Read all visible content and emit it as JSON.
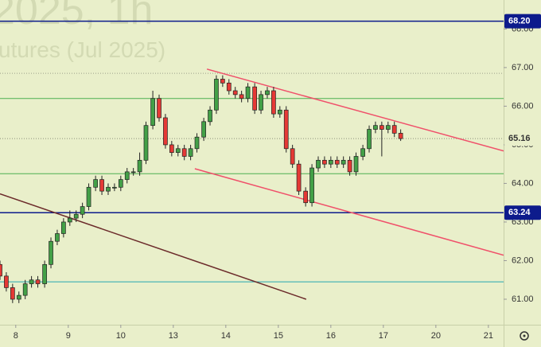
{
  "chart_data": {
    "type": "candlestick",
    "watermark": [
      "2025, 1h",
      "utures (Jul 2025)"
    ],
    "xlim": [
      -0.3,
      9.29
    ],
    "ylim": [
      60.34,
      68.75
    ],
    "xticks": [
      {
        "value": 0,
        "label": "8"
      },
      {
        "value": 1,
        "label": "9"
      },
      {
        "value": 2,
        "label": "10"
      },
      {
        "value": 3,
        "label": "13"
      },
      {
        "value": 4,
        "label": "14"
      },
      {
        "value": 5,
        "label": "15"
      },
      {
        "value": 6,
        "label": "16"
      },
      {
        "value": 7,
        "label": "17"
      },
      {
        "value": 8,
        "label": "20"
      },
      {
        "value": 9,
        "label": "21"
      }
    ],
    "yticks": [
      {
        "value": 61,
        "label": "61.00"
      },
      {
        "value": 62,
        "label": "62.00"
      },
      {
        "value": 63,
        "label": "63.00"
      },
      {
        "value": 64,
        "label": "64.00"
      },
      {
        "value": 65,
        "label": "65.00"
      },
      {
        "value": 66,
        "label": "66.00"
      },
      {
        "value": 67,
        "label": "67.00"
      },
      {
        "value": 68,
        "label": "68.00"
      }
    ],
    "up_color": "#43a047",
    "down_color": "#e53935",
    "x": [
      -0.3,
      -0.18,
      -0.06,
      0.06,
      0.18,
      0.3,
      0.42,
      0.55,
      0.67,
      0.79,
      0.91,
      1.03,
      1.15,
      1.27,
      1.39,
      1.52,
      1.64,
      1.76,
      1.88,
      2.0,
      2.12,
      2.24,
      2.36,
      2.48,
      2.61,
      2.73,
      2.85,
      2.97,
      3.09,
      3.21,
      3.33,
      3.45,
      3.58,
      3.7,
      3.82,
      3.94,
      4.06,
      4.18,
      4.3,
      4.42,
      4.55,
      4.67,
      4.79,
      4.91,
      5.03,
      5.15,
      5.27,
      5.39,
      5.52,
      5.64,
      5.76,
      5.88,
      6.0,
      6.12,
      6.24,
      6.36,
      6.48,
      6.61,
      6.73,
      6.85,
      6.97,
      7.09,
      7.21,
      7.33
    ],
    "open": [
      61.9,
      61.6,
      61.3,
      61.0,
      61.1,
      61.4,
      61.5,
      61.4,
      61.9,
      62.5,
      62.7,
      63.0,
      63.1,
      63.2,
      63.4,
      63.9,
      64.1,
      63.8,
      63.9,
      63.9,
      64.1,
      64.3,
      64.3,
      64.6,
      65.5,
      66.2,
      65.7,
      65.0,
      64.8,
      64.9,
      64.7,
      64.9,
      65.2,
      65.6,
      65.9,
      66.7,
      66.6,
      66.4,
      66.3,
      66.2,
      66.5,
      65.9,
      66.3,
      66.4,
      65.8,
      65.9,
      64.9,
      64.5,
      63.8,
      63.5,
      64.4,
      64.6,
      64.5,
      64.6,
      64.5,
      64.6,
      64.3,
      64.7,
      64.9,
      65.4,
      65.5,
      65.4,
      65.5,
      65.3
    ],
    "high": [
      62.0,
      61.7,
      61.4,
      61.2,
      61.5,
      61.6,
      61.6,
      62.0,
      62.6,
      62.8,
      63.1,
      63.3,
      63.3,
      63.5,
      64.0,
      64.2,
      64.2,
      64.0,
      64.0,
      64.2,
      64.4,
      64.4,
      64.8,
      65.6,
      66.4,
      66.3,
      65.8,
      65.1,
      65.0,
      65.0,
      65.0,
      65.3,
      65.7,
      66.0,
      66.8,
      66.8,
      66.7,
      66.5,
      66.4,
      66.6,
      66.6,
      66.4,
      66.5,
      66.5,
      66.0,
      66.0,
      65.0,
      64.6,
      63.9,
      64.5,
      64.7,
      64.7,
      64.7,
      64.7,
      64.7,
      64.7,
      64.8,
      65.0,
      65.5,
      65.6,
      65.6,
      65.6,
      65.6,
      65.4
    ],
    "low": [
      61.5,
      61.2,
      60.9,
      60.9,
      61.0,
      61.3,
      61.3,
      61.3,
      61.8,
      62.4,
      62.6,
      62.9,
      63.0,
      63.1,
      63.3,
      63.8,
      63.7,
      63.7,
      63.8,
      63.8,
      64.0,
      64.2,
      64.2,
      64.5,
      65.4,
      65.6,
      64.9,
      64.7,
      64.7,
      64.6,
      64.6,
      64.8,
      65.1,
      65.5,
      65.8,
      66.5,
      66.3,
      66.2,
      66.1,
      66.1,
      65.8,
      65.8,
      66.2,
      65.7,
      65.7,
      64.8,
      64.4,
      63.7,
      63.4,
      63.4,
      64.3,
      64.4,
      64.4,
      64.4,
      64.4,
      64.2,
      64.2,
      64.6,
      64.8,
      65.3,
      64.7,
      65.3,
      65.2,
      65.1
    ],
    "close": [
      61.6,
      61.3,
      61.0,
      61.1,
      61.4,
      61.5,
      61.4,
      61.9,
      62.5,
      62.7,
      63.0,
      63.1,
      63.2,
      63.4,
      63.9,
      64.1,
      63.8,
      63.9,
      63.9,
      64.1,
      64.3,
      64.3,
      64.6,
      65.5,
      66.2,
      65.7,
      65.0,
      64.8,
      64.9,
      64.7,
      64.9,
      65.2,
      65.6,
      65.9,
      66.7,
      66.6,
      66.4,
      66.3,
      66.2,
      66.5,
      65.9,
      66.3,
      66.4,
      65.8,
      65.9,
      64.9,
      64.5,
      63.8,
      63.5,
      64.4,
      64.6,
      64.5,
      64.6,
      64.5,
      64.6,
      64.3,
      64.7,
      64.9,
      65.4,
      65.5,
      65.4,
      65.5,
      65.3,
      65.16
    ],
    "hlines": [
      {
        "value": 68.2,
        "label": "68.20",
        "color": "#0d1b8c"
      },
      {
        "value": 66.85,
        "color": "#9aa08a",
        "dotted": true
      },
      {
        "value": 66.2,
        "color": "#4caf50"
      },
      {
        "value": 65.16,
        "label": "65.16",
        "color": "#8a907a",
        "dotted": true
      },
      {
        "value": 64.25,
        "color": "#4caf50"
      },
      {
        "value": 63.24,
        "label": "63.24",
        "color": "#0d1b8c"
      },
      {
        "value": 61.45,
        "color": "#26a6b0"
      }
    ],
    "trendlines": [
      {
        "from": [
          3.64,
          66.96
        ],
        "to": [
          9.29,
          64.84
        ],
        "color": "#f0506a"
      },
      {
        "from": [
          3.41,
          64.38
        ],
        "to": [
          9.29,
          62.14
        ],
        "color": "#f0506a"
      },
      {
        "from": [
          -0.3,
          63.73
        ],
        "to": [
          5.53,
          61.0
        ],
        "color": "#6b2a2a"
      }
    ]
  }
}
